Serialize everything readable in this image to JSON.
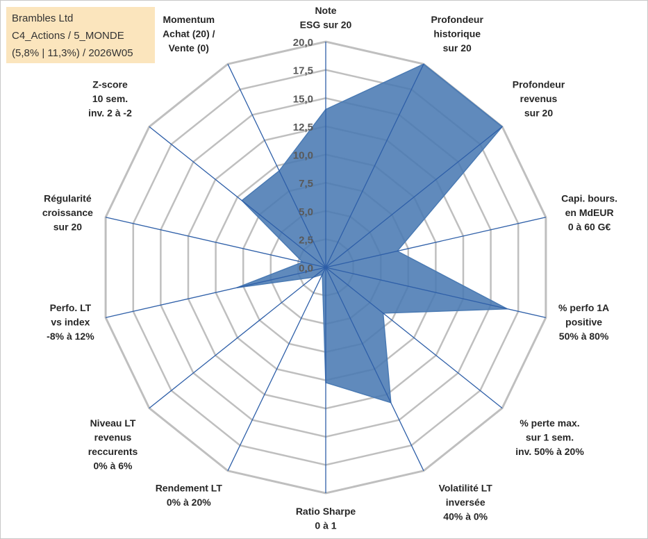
{
  "info": {
    "line1": "Brambles Ltd",
    "line2": "C4_Actions / 5_MONDE",
    "line3": "(5,8% | 11,3%) / 2026W05"
  },
  "colors": {
    "fill": "#4a7ab3",
    "spoke": "#2e5fa8",
    "grid": "#bfbfbf",
    "info_bg": "#fbe5bd"
  },
  "chart_data": {
    "type": "radar",
    "title": "",
    "rlim": [
      0,
      20
    ],
    "ticks": [
      "0,0",
      "2,5",
      "5,0",
      "7,5",
      "10,0",
      "12,5",
      "15,0",
      "17,5",
      "20,0"
    ],
    "axes": [
      {
        "lines": [
          "Note",
          "ESG sur 20"
        ],
        "value": 14
      },
      {
        "lines": [
          "Profondeur",
          "historique",
          "sur 20"
        ],
        "value": 20
      },
      {
        "lines": [
          "Profondeur",
          "revenus",
          "sur 20"
        ],
        "value": 20
      },
      {
        "lines": [
          "Capi. bours.",
          "en MdEUR",
          "0 à 60 G€"
        ],
        "value": 6.5
      },
      {
        "lines": [
          "% perfo 1A",
          "positive",
          "50% à 80%"
        ],
        "value": 16.5
      },
      {
        "lines": [
          "% perte max.",
          "sur 1 sem.",
          "inv. 50% à 20%"
        ],
        "value": 6.5
      },
      {
        "lines": [
          "Volatilité LT",
          "inversée",
          "40% à 0%"
        ],
        "value": 13.3
      },
      {
        "lines": [
          "Ratio Sharpe",
          "0 à 1"
        ],
        "value": 10.2
      },
      {
        "lines": [
          "Rendement LT",
          "0% à 20%"
        ],
        "value": 0.7
      },
      {
        "lines": [
          "Niveau LT",
          "revenus",
          "reccurents",
          "0% à 6%"
        ],
        "value": 1.4
      },
      {
        "lines": [
          "Perfo. LT",
          "vs index",
          "-8% à 12%"
        ],
        "value": 8.1
      },
      {
        "lines": [
          "Régularité",
          "croissance",
          "sur 20"
        ],
        "value": 2.1
      },
      {
        "lines": [
          "Z-score",
          "10 sem.",
          "inv. 2 à -2"
        ],
        "value": 9.5
      },
      {
        "lines": [
          "Momentum",
          "Achat (20) /",
          "Vente (0)"
        ],
        "value": 9.5
      }
    ]
  }
}
